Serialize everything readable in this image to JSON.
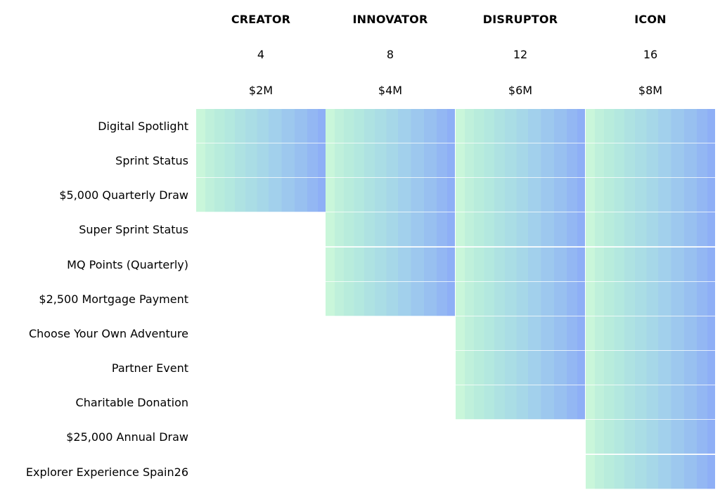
{
  "tiers": [
    {
      "name": "CREATOR",
      "count": "4",
      "amount": "$2M",
      "rows_included": 3
    },
    {
      "name": "INNOVATOR",
      "count": "8",
      "amount": "$4M",
      "rows_included": 6
    },
    {
      "name": "DISRUPTOR",
      "count": "12",
      "amount": "$6M",
      "rows_included": 9
    },
    {
      "name": "ICON",
      "count": "16",
      "amount": "$8M",
      "rows_included": 11
    }
  ],
  "benefits": [
    "Digital Spotlight",
    "Sprint Status",
    "$5,000 Quarterly Draw",
    "Super Sprint Status",
    "MQ Points (Quarterly)",
    "$2,500 Mortgage Payment",
    "Choose Your Own Adventure",
    "Partner Event",
    "Charitable Donation",
    "$25,000 Annual Draw",
    "Explorer Experience Spain26"
  ],
  "colors": {
    "gradient_start": "#c9f6da",
    "gradient_end": "#8eaff6",
    "text": "#000000",
    "background": "#ffffff"
  }
}
